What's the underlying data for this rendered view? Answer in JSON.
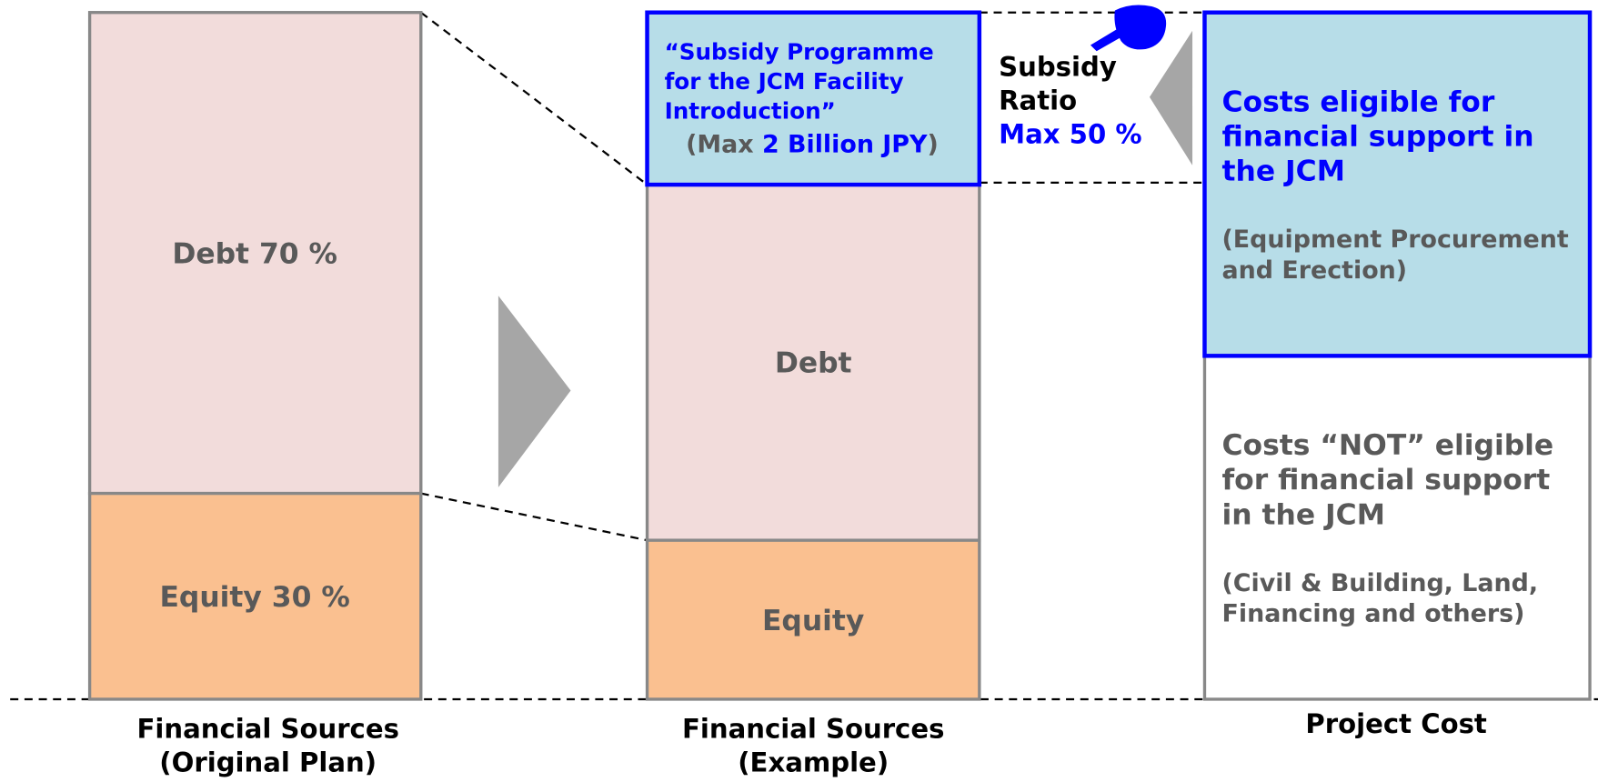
{
  "original_plan": {
    "debt": "Debt 70 %",
    "equity": "Equity 30 %",
    "label": [
      "Financial Sources",
      "(Original Plan)"
    ]
  },
  "example": {
    "subsidy": [
      "“Subsidy Programme",
      "for the JCM Facility",
      "Introduction”"
    ],
    "max": [
      "(Max ",
      "2 Billion JPY",
      ")"
    ],
    "debt": "Debt",
    "equity": "Equity",
    "label": [
      "Financial Sources",
      "(Example)"
    ]
  },
  "subsidy_ratio": [
    "Subsidy",
    "Ratio",
    "Max 50 %"
  ],
  "project_cost": {
    "eligible": [
      "Costs eligible for",
      "financial support in",
      "the JCM"
    ],
    "eligible_note": [
      "(Equipment Procurement",
      "and Erection)"
    ],
    "not_eligible": [
      "Costs “NOT” eligible",
      "for financial support",
      "in the JCM"
    ],
    "not_eligible_note": [
      "(Civil & Building, Land,",
      "Financing and others)"
    ],
    "label": "Project Cost"
  }
}
